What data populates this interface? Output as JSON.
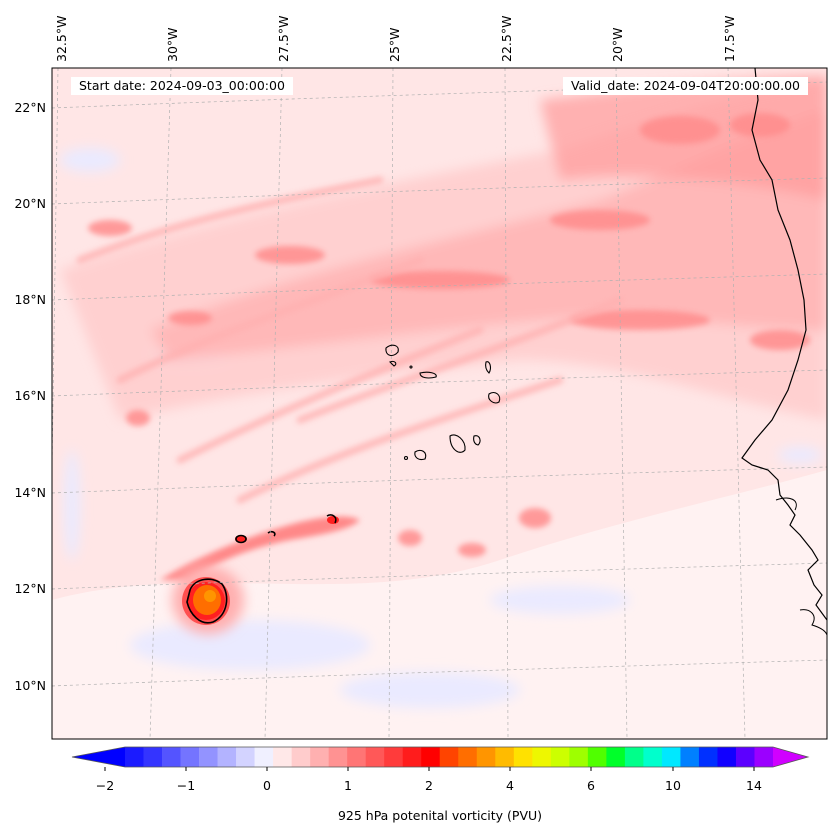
{
  "map": {
    "start_date": "Start date: 2024-09-03_00:00:00",
    "valid_date": "Valid_date: 2024-09-04T20:00:00.00",
    "lon_labels": [
      "32.5°W",
      "30°W",
      "27.5°W",
      "25°W",
      "22.5°W",
      "20°W",
      "17.5°W"
    ],
    "lat_labels": [
      "22°N",
      "20°N",
      "18°N",
      "16°N",
      "14°N",
      "12°N",
      "10°N"
    ],
    "lon_range": [
      -33,
      -15.5
    ],
    "lat_range": [
      8.9,
      22.8
    ]
  },
  "colorbar": {
    "title": "925 hPa potenital vorticity (PVU)",
    "tick_labels": [
      "−2",
      "−1",
      "0",
      "1",
      "2",
      "4",
      "6",
      "10",
      "14"
    ],
    "colors": [
      "#1b1bff",
      "#3434ff",
      "#5454ff",
      "#7474ff",
      "#9393ff",
      "#b3b3ff",
      "#d3d3ff",
      "#f0f0ff",
      "#ffe8e8",
      "#ffcccc",
      "#ffb0b0",
      "#ff9292",
      "#ff7575",
      "#ff5858",
      "#ff3b3b",
      "#ff1c1c",
      "#ff0000",
      "#ff4400",
      "#ff6e00",
      "#ff9500",
      "#ffbb00",
      "#ffe100",
      "#eef700",
      "#ccff00",
      "#9eff00",
      "#50ff00",
      "#00ff2a",
      "#00ff8a",
      "#00ffcc",
      "#00e8ff",
      "#0080ff",
      "#0030ff",
      "#1100ff",
      "#5c00ff",
      "#9b00ff"
    ],
    "under_color": "#0000ff",
    "over_color": "#d000ff"
  }
}
